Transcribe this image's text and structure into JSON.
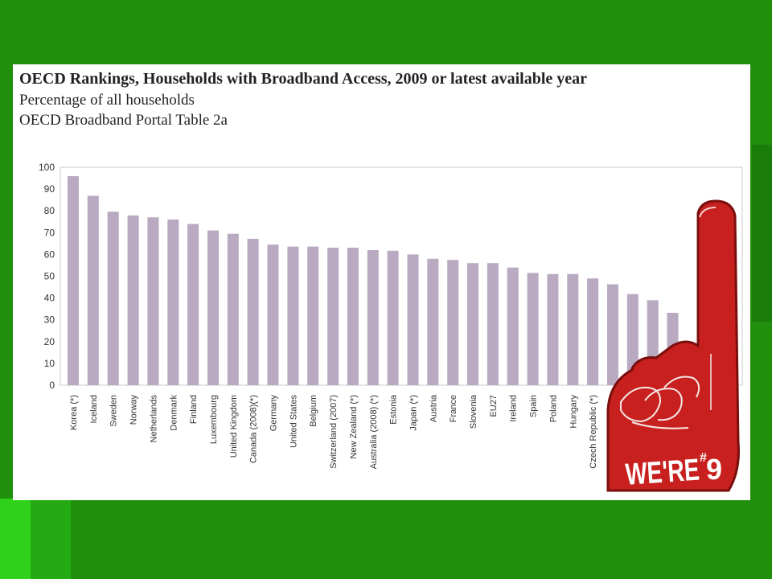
{
  "slide": {
    "title": "OECD Rankings, Households with Broadband Access, 2009 or latest available year",
    "subtitle": "Percentage of all households",
    "source": "OECD Broadband Portal Table 2a"
  },
  "badge": {
    "text": "WE'RE",
    "superscript": "#",
    "number": "9"
  },
  "colors": {
    "background": "#1f8f0c",
    "bar": "#b9a9c1",
    "foam_finger": "#c8201e"
  },
  "chart_data": {
    "type": "bar",
    "categories": [
      "Korea (*)",
      "Iceland",
      "Sweden",
      "Norway",
      "Netherlands",
      "Denmark",
      "Finland",
      "Luxembourg",
      "United Kingdom",
      "Canada (2008)(*)",
      "Germany",
      "United States",
      "Belgium",
      "Switzerland (2007)",
      "New Zealand (*)",
      "Australia (2008) (*)",
      "Estonia",
      "Japan (*)",
      "Austria",
      "France",
      "Slovenia",
      "EU27",
      "Ireland",
      "Spain",
      "Poland",
      "Hungary",
      "Czech Republic (*)",
      "",
      "",
      "",
      ""
    ],
    "values": [
      95.9,
      86.9,
      79.6,
      77.9,
      77.0,
      76.0,
      74.0,
      71.0,
      69.5,
      67.2,
      64.5,
      63.6,
      63.6,
      63.1,
      63.1,
      62.0,
      61.7,
      60.0,
      58.0,
      57.5,
      56.0,
      56.0,
      54.0,
      51.5,
      51.0,
      51.0,
      49.0,
      46.3,
      41.8,
      39.0,
      33.2
    ],
    "yticks": [
      0,
      10,
      20,
      30,
      40,
      50,
      60,
      70,
      80,
      90,
      100
    ],
    "ylim": [
      0,
      100
    ],
    "grid": false,
    "legend": "none"
  }
}
